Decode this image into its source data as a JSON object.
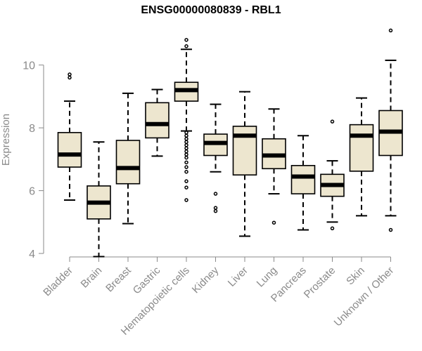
{
  "chart_data": {
    "type": "boxplot",
    "title": "ENSG00000080839 - RBL1",
    "ylabel": "Expression",
    "xlabel": "",
    "ylim": [
      3.8,
      11.4
    ],
    "yticks": [
      4,
      6,
      8,
      10
    ],
    "grid": false,
    "legend": "none",
    "box_fill": "#ede6cf",
    "categories": [
      "Bladder",
      "Brain",
      "Breast",
      "Gastric",
      "Hematopoietic cells",
      "Kidney",
      "Liver",
      "Lung",
      "Pancreas",
      "Prostate",
      "Skin",
      "Unknown / Other"
    ],
    "boxes": [
      {
        "min": 5.7,
        "q1": 6.75,
        "median": 7.15,
        "q3": 7.85,
        "max": 8.85,
        "outliers": [
          9.6,
          9.7
        ]
      },
      {
        "min": 3.9,
        "q1": 5.1,
        "median": 5.62,
        "q3": 6.15,
        "max": 7.55,
        "outliers": []
      },
      {
        "min": 4.95,
        "q1": 6.22,
        "median": 6.72,
        "q3": 7.6,
        "max": 9.1,
        "outliers": []
      },
      {
        "min": 7.1,
        "q1": 7.68,
        "median": 8.12,
        "q3": 8.8,
        "max": 9.22,
        "outliers": []
      },
      {
        "min": 7.9,
        "q1": 8.85,
        "median": 9.2,
        "q3": 9.45,
        "max": 10.5,
        "outliers": [
          10.6,
          10.8,
          7.85,
          7.75,
          7.65,
          7.55,
          7.45,
          7.35,
          7.25,
          7.15,
          7.05,
          6.9,
          6.75,
          6.6,
          6.3,
          6.1,
          5.7
        ]
      },
      {
        "min": 6.6,
        "q1": 7.12,
        "median": 7.52,
        "q3": 7.8,
        "max": 8.75,
        "outliers": [
          5.9,
          5.45,
          5.35
        ]
      },
      {
        "min": 4.55,
        "q1": 6.5,
        "median": 7.75,
        "q3": 8.05,
        "max": 9.15,
        "outliers": []
      },
      {
        "min": 5.9,
        "q1": 6.7,
        "median": 7.12,
        "q3": 7.65,
        "max": 8.6,
        "outliers": [
          4.98
        ]
      },
      {
        "min": 4.75,
        "q1": 5.9,
        "median": 6.45,
        "q3": 6.8,
        "max": 7.75,
        "outliers": []
      },
      {
        "min": 5.0,
        "q1": 5.82,
        "median": 6.18,
        "q3": 6.52,
        "max": 6.95,
        "outliers": [
          8.2,
          4.8
        ]
      },
      {
        "min": 5.2,
        "q1": 6.62,
        "median": 7.75,
        "q3": 8.1,
        "max": 8.95,
        "outliers": []
      },
      {
        "min": 5.2,
        "q1": 7.12,
        "median": 7.88,
        "q3": 8.55,
        "max": 10.15,
        "outliers": [
          11.1,
          4.75
        ]
      }
    ]
  }
}
